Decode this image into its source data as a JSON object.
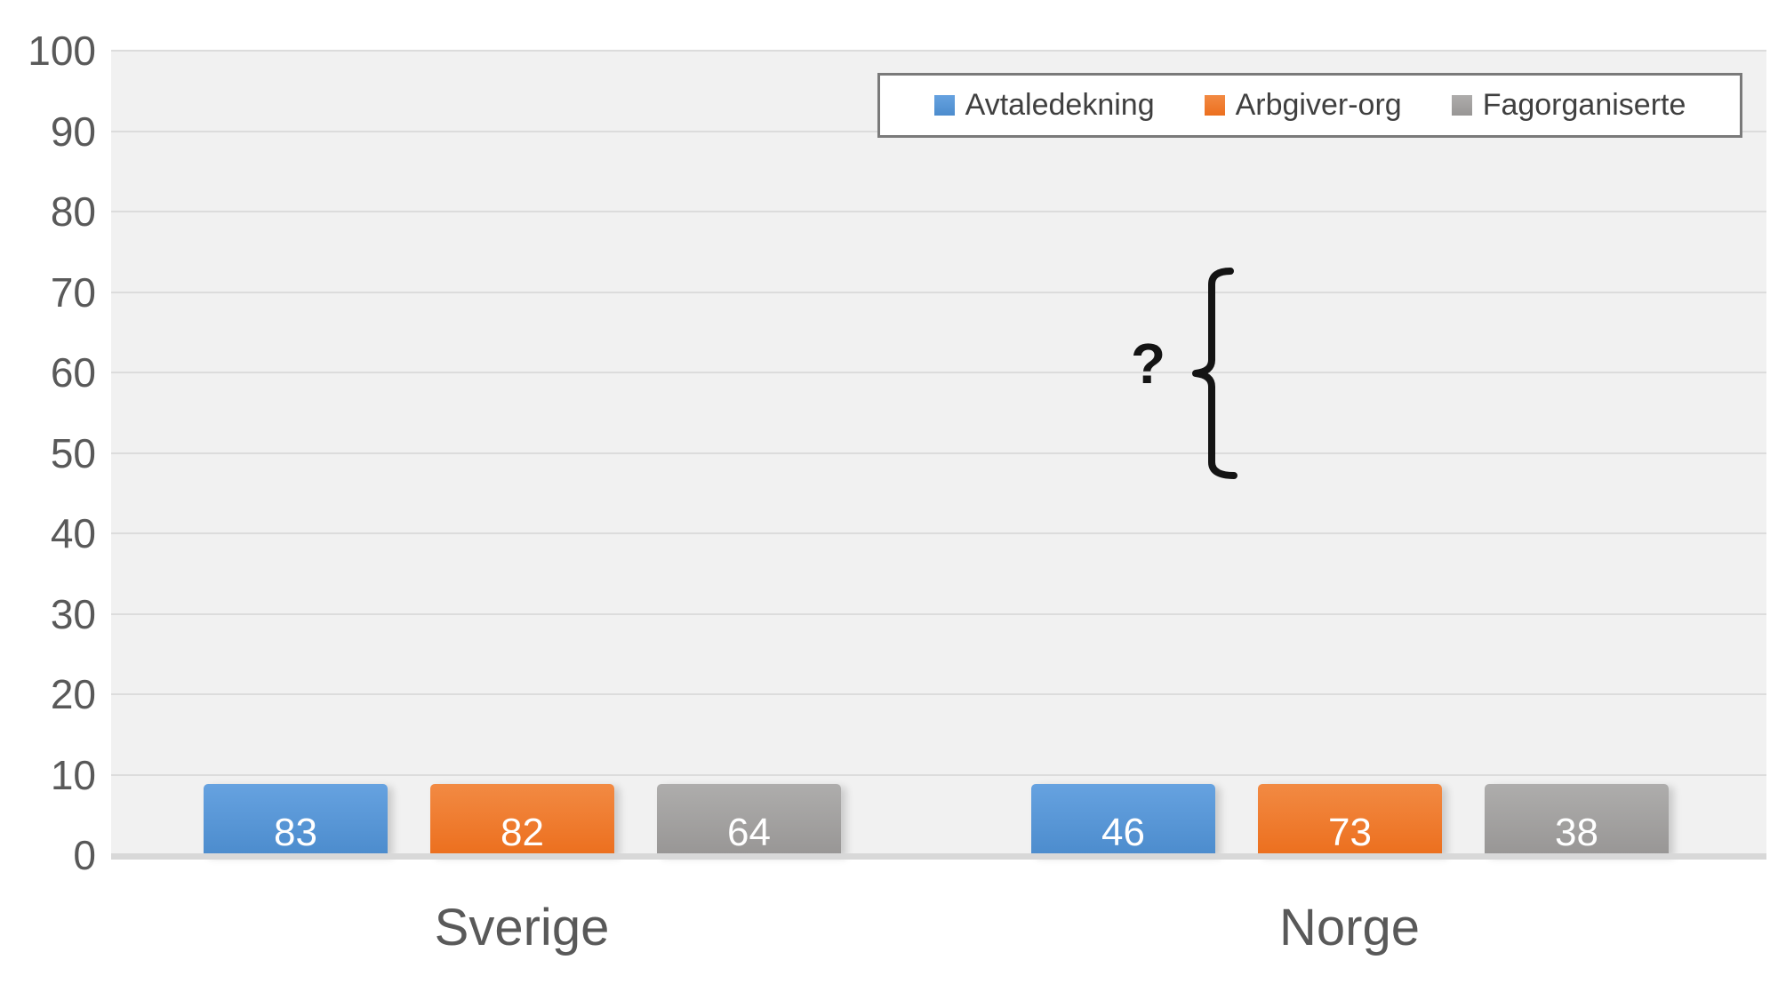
{
  "chart_data": {
    "type": "bar",
    "title": "",
    "categories": [
      "Sverige",
      "Norge"
    ],
    "series": [
      {
        "name": "Avtaledekning",
        "color": "#5697da",
        "fill_top": "#66a2e0",
        "fill_bottom": "#4c8ccd",
        "values": [
          83,
          46
        ]
      },
      {
        "name": "Arbgiver-org",
        "color": "#ef7623",
        "fill_top": "#f28a43",
        "fill_bottom": "#ec6f1e",
        "values": [
          82,
          73
        ]
      },
      {
        "name": "Fagorganiserte",
        "color": "#a1a09f",
        "fill_top": "#aeadac",
        "fill_bottom": "#989695",
        "values": [
          64,
          38
        ]
      }
    ],
    "value_labels": [
      "83",
      "82",
      "64",
      "46",
      "73",
      "38"
    ],
    "ylim": [
      0,
      100
    ],
    "yticks": [
      100,
      90,
      80,
      70,
      60,
      50,
      40,
      30,
      20,
      10,
      0
    ],
    "grid": true,
    "legend_position": "top-right",
    "annotation": {
      "text": "?"
    }
  },
  "colors": {
    "plot_background": "#f1f1f1",
    "gridline": "#dcdcdc",
    "axis_line": "#d8d8d8",
    "tick_label": "#595959",
    "category_label": "#595959",
    "legend_text": "#3f3f3f",
    "legend_border": "#7a7a7a",
    "value_label": "#ffffff",
    "annotation": "#141414"
  }
}
